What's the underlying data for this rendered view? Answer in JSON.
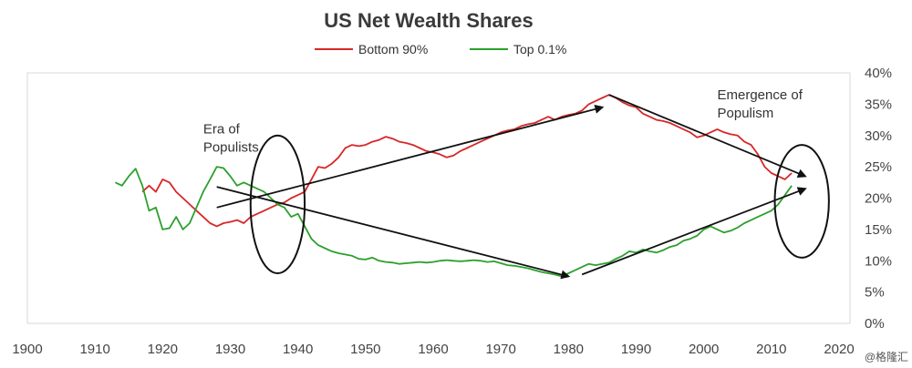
{
  "chart_data": {
    "type": "line",
    "title": "US Net Wealth Shares",
    "xlabel": "",
    "ylabel": "",
    "xlim": [
      1900,
      2020
    ],
    "ylim": [
      0,
      40
    ],
    "x_ticks": [
      1900,
      1910,
      1920,
      1930,
      1940,
      1950,
      1960,
      1970,
      1980,
      1990,
      2000,
      2010,
      2020
    ],
    "y_ticks": [
      "0%",
      "5%",
      "10%",
      "15%",
      "20%",
      "25%",
      "30%",
      "35%",
      "40%"
    ],
    "y_tick_values": [
      0,
      5,
      10,
      15,
      20,
      25,
      30,
      35,
      40
    ],
    "legend_position": "top-center",
    "series": [
      {
        "name": "Bottom 90%",
        "color": "#d62728",
        "x": [
          1917,
          1918,
          1919,
          1920,
          1921,
          1922,
          1923,
          1924,
          1925,
          1926,
          1927,
          1928,
          1929,
          1930,
          1931,
          1932,
          1933,
          1934,
          1935,
          1936,
          1937,
          1938,
          1939,
          1940,
          1941,
          1942,
          1943,
          1944,
          1945,
          1946,
          1947,
          1948,
          1949,
          1950,
          1951,
          1952,
          1953,
          1954,
          1955,
          1956,
          1957,
          1958,
          1959,
          1960,
          1961,
          1962,
          1963,
          1964,
          1965,
          1966,
          1967,
          1968,
          1969,
          1970,
          1971,
          1972,
          1973,
          1974,
          1975,
          1976,
          1977,
          1978,
          1979,
          1980,
          1981,
          1982,
          1983,
          1984,
          1985,
          1986,
          1987,
          1988,
          1989,
          1990,
          1991,
          1992,
          1993,
          1994,
          1995,
          1996,
          1997,
          1998,
          1999,
          2000,
          2001,
          2002,
          2003,
          2004,
          2005,
          2006,
          2007,
          2008,
          2009,
          2010,
          2011,
          2012,
          2013
        ],
        "values": [
          21,
          22,
          21,
          23,
          22.5,
          21,
          20,
          19,
          18,
          17,
          16,
          15.5,
          16,
          16.2,
          16.5,
          16,
          17,
          17.5,
          18,
          18.5,
          19,
          19.3,
          20,
          20.5,
          21,
          23,
          25,
          24.8,
          25.5,
          26.5,
          28,
          28.5,
          28.3,
          28.5,
          29,
          29.3,
          29.8,
          29.5,
          29,
          28.8,
          28.5,
          28,
          27.5,
          27.3,
          27,
          26.5,
          26.8,
          27.5,
          28,
          28.5,
          29,
          29.5,
          30,
          30.5,
          30.8,
          31,
          31.5,
          31.8,
          32,
          32.5,
          33,
          32.5,
          33,
          33.3,
          33.5,
          34,
          35,
          35.5,
          36,
          36.5,
          36,
          35.3,
          34.8,
          34.5,
          33.5,
          33,
          32.5,
          32.3,
          32,
          31.5,
          31,
          30.5,
          29.7,
          30,
          30.5,
          31,
          30.5,
          30.2,
          30,
          29,
          28.5,
          27,
          25,
          24,
          23.5,
          23,
          24
        ]
      },
      {
        "name": "Top 0.1%",
        "color": "#2ca02c",
        "x": [
          1913,
          1914,
          1915,
          1916,
          1917,
          1918,
          1919,
          1920,
          1921,
          1922,
          1923,
          1924,
          1925,
          1926,
          1927,
          1928,
          1929,
          1930,
          1931,
          1932,
          1933,
          1934,
          1935,
          1936,
          1937,
          1938,
          1939,
          1940,
          1941,
          1942,
          1943,
          1944,
          1945,
          1946,
          1947,
          1948,
          1949,
          1950,
          1951,
          1952,
          1953,
          1954,
          1955,
          1956,
          1957,
          1958,
          1959,
          1960,
          1961,
          1962,
          1963,
          1964,
          1965,
          1966,
          1967,
          1968,
          1969,
          1970,
          1971,
          1972,
          1973,
          1974,
          1975,
          1976,
          1977,
          1978,
          1979,
          1980,
          1981,
          1982,
          1983,
          1984,
          1985,
          1986,
          1987,
          1988,
          1989,
          1990,
          1991,
          1992,
          1993,
          1994,
          1995,
          1996,
          1997,
          1998,
          1999,
          2000,
          2001,
          2002,
          2003,
          2004,
          2005,
          2006,
          2007,
          2008,
          2009,
          2010,
          2011,
          2012,
          2013
        ],
        "values": [
          22.5,
          22,
          23.5,
          24.7,
          22,
          18,
          18.5,
          15,
          15.2,
          17,
          15,
          16,
          18.5,
          21,
          23,
          25,
          24.8,
          23.5,
          22,
          22.5,
          22,
          21.5,
          21,
          20,
          19,
          18.5,
          17,
          17.5,
          15.5,
          13.5,
          12.5,
          12,
          11.5,
          11.2,
          11,
          10.8,
          10.3,
          10.2,
          10.5,
          10,
          9.8,
          9.7,
          9.5,
          9.6,
          9.7,
          9.8,
          9.7,
          9.8,
          10,
          10.1,
          10,
          9.9,
          10,
          10.1,
          10,
          9.8,
          9.9,
          9.6,
          9.3,
          9.2,
          9,
          8.8,
          8.5,
          8.2,
          8,
          7.8,
          7.5,
          8,
          8.5,
          9,
          9.5,
          9.3,
          9.5,
          9.7,
          10.3,
          10.8,
          11.5,
          11.3,
          11.8,
          11.5,
          11.3,
          11.7,
          12.2,
          12.5,
          13.2,
          13.5,
          14,
          15,
          15.5,
          15,
          14.5,
          14.8,
          15.3,
          16,
          16.5,
          17,
          17.5,
          18,
          19,
          20.5,
          22
        ]
      }
    ],
    "arrows": [
      {
        "from": [
          1928,
          18.5
        ],
        "to": [
          1985,
          34.5
        ]
      },
      {
        "from": [
          1928,
          21.8
        ],
        "to": [
          1980,
          7.5
        ]
      },
      {
        "from": [
          1986,
          36.5
        ],
        "to": [
          2015,
          23.5
        ]
      },
      {
        "from": [
          1982,
          7.8
        ],
        "to": [
          2015,
          21.5
        ]
      }
    ],
    "ellipses": [
      {
        "cx": 1937,
        "cy": 19,
        "rx": 4,
        "ry": 11
      },
      {
        "cx": 2014.5,
        "cy": 19.5,
        "rx": 4,
        "ry": 9
      }
    ],
    "annotations": [
      {
        "lines": [
          "Era of",
          "Populists"
        ],
        "at": [
          1926,
          30.3
        ]
      },
      {
        "lines": [
          "Emergence of",
          "Populism"
        ],
        "at": [
          2002,
          35.8
        ]
      }
    ]
  },
  "watermark": "@格隆汇"
}
